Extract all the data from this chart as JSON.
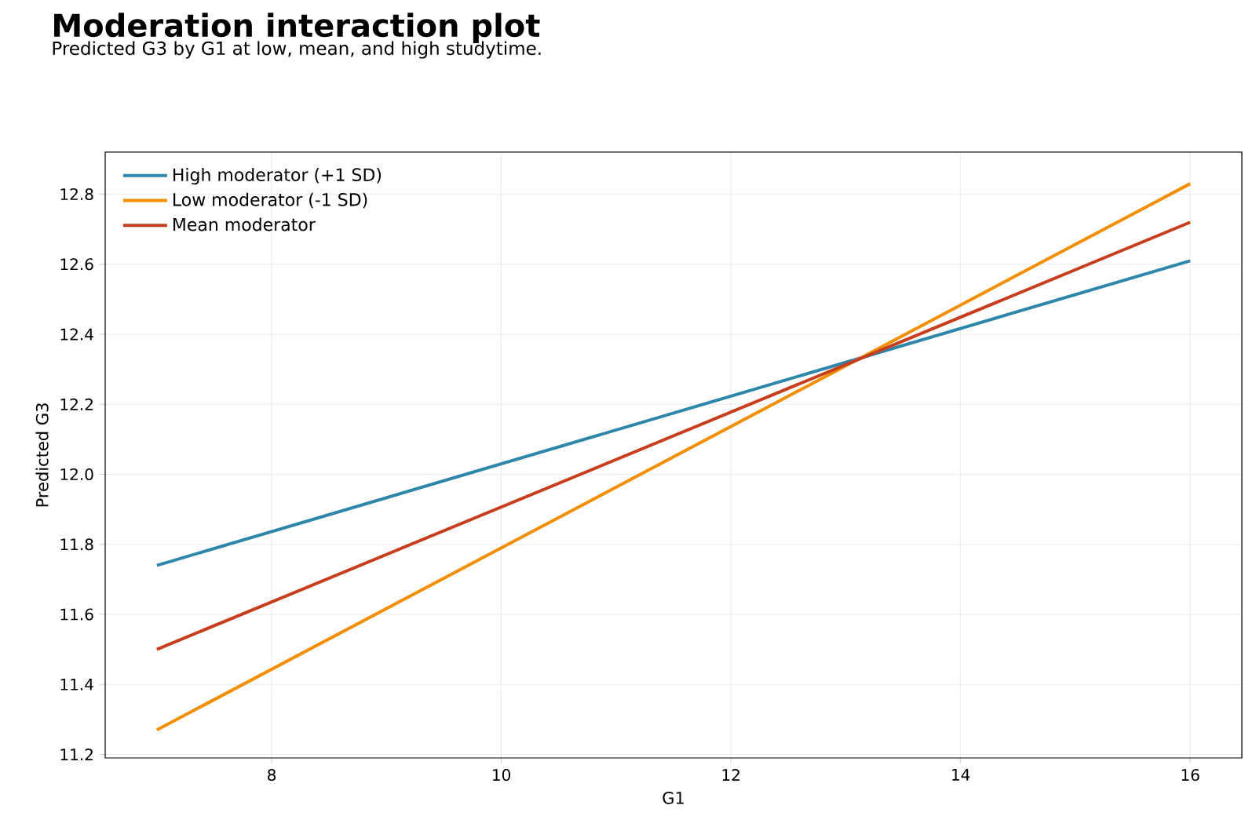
{
  "chart_data": {
    "type": "line",
    "title": "Moderation interaction plot",
    "subtitle": "Predicted G3 by G1 at low, mean, and high studytime.",
    "xlabel": "G1",
    "ylabel": "Predicted G3",
    "x": [
      7,
      16
    ],
    "series": [
      {
        "name": "High moderator (+1 SD)",
        "color": "#2e86ab",
        "values": [
          11.74,
          12.61
        ]
      },
      {
        "name": "Low moderator (-1 SD)",
        "color": "#f18f01",
        "values": [
          11.27,
          12.83
        ]
      },
      {
        "name": "Mean moderator",
        "color": "#c73e1d",
        "values": [
          11.5,
          12.72
        ]
      }
    ],
    "xlim": [
      6.55,
      16.45
    ],
    "ylim": [
      11.19,
      12.92
    ],
    "xticks": [
      8,
      10,
      12,
      14,
      16
    ],
    "yticks": [
      11.2,
      11.4,
      11.6,
      11.8,
      {
        "value": 12,
        "label": "12.0"
      },
      12.2,
      12.4,
      12.6,
      12.8
    ],
    "grid": true,
    "legend": "top left",
    "marker": "none",
    "line_style": "solid"
  }
}
